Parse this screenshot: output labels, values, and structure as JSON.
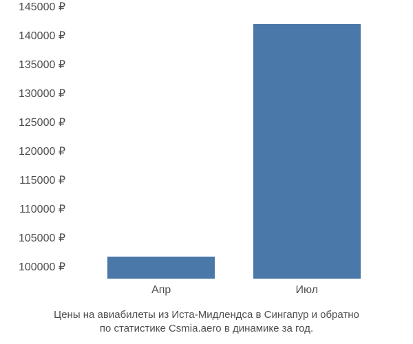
{
  "chart": {
    "type": "bar",
    "background_color": "#ffffff",
    "bar_color": "#4a78a9",
    "text_color": "#4d4d4d",
    "label_fontsize": 16,
    "caption_fontsize": 15,
    "y": {
      "min": 98000,
      "max": 145000,
      "ticks": [
        100000,
        105000,
        110000,
        115000,
        120000,
        125000,
        130000,
        135000,
        140000,
        145000
      ],
      "tick_labels": [
        "100000 ₽",
        "105000 ₽",
        "110000 ₽",
        "115000 ₽",
        "120000 ₽",
        "125000 ₽",
        "130000 ₽",
        "135000 ₽",
        "140000 ₽",
        "145000 ₽"
      ]
    },
    "x": {
      "categories": [
        "Апр",
        "Июл"
      ],
      "positions_pct": [
        27,
        73
      ]
    },
    "bars": [
      {
        "category": "Апр",
        "value": 101800,
        "left_pct": 10,
        "width_pct": 34
      },
      {
        "category": "Июл",
        "value": 142000,
        "left_pct": 56,
        "width_pct": 34
      }
    ],
    "caption_line1": "Цены на авиабилеты из Иста-Мидлендса в Сингапур и обратно",
    "caption_line2": "по статистике Csmia.aero в динамике за год."
  }
}
